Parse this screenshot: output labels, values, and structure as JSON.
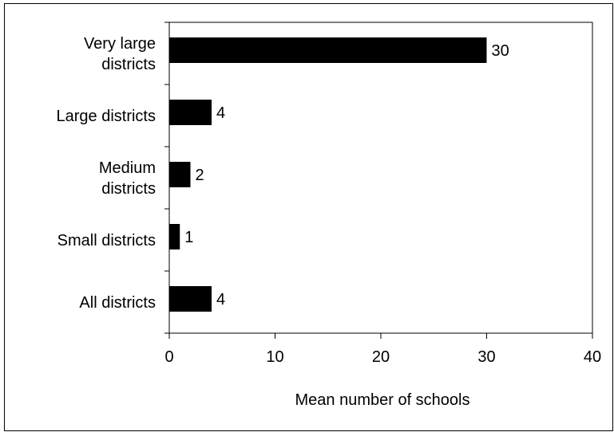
{
  "chart_data": {
    "type": "bar",
    "orientation": "horizontal",
    "categories": [
      [
        "Very large",
        "districts"
      ],
      [
        "Large districts"
      ],
      [
        "Medium",
        "districts"
      ],
      [
        "Small districts"
      ],
      [
        "All districts"
      ]
    ],
    "values": [
      30,
      4,
      2,
      1,
      4
    ],
    "data_labels": [
      "30",
      "4",
      "2",
      "1",
      "4"
    ],
    "xlabel": "Mean number of schools",
    "xlim": [
      0,
      40
    ],
    "xticks": [
      0,
      10,
      20,
      30,
      40
    ],
    "bar_color": "#000000",
    "grid": false,
    "legend": "none"
  }
}
